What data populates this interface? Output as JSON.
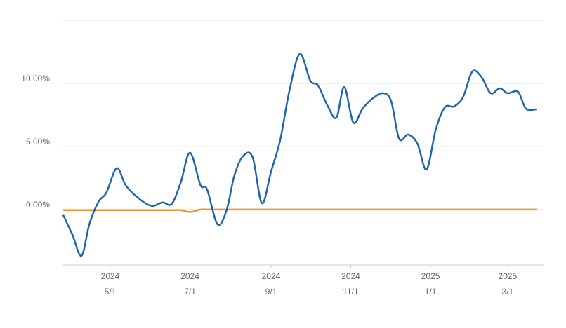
{
  "chart_data": {
    "type": "line",
    "x": [
      "2024-03-26",
      "2024-04-02",
      "2024-04-09",
      "2024-04-15",
      "2024-04-22",
      "2024-04-28",
      "2024-05-06",
      "2024-05-13",
      "2024-05-24",
      "2024-06-02",
      "2024-06-10",
      "2024-06-17",
      "2024-06-24",
      "2024-07-01",
      "2024-07-09",
      "2024-07-14",
      "2024-07-22",
      "2024-07-29",
      "2024-08-04",
      "2024-08-11",
      "2024-08-18",
      "2024-08-25",
      "2024-09-01",
      "2024-09-08",
      "2024-09-15",
      "2024-09-23",
      "2024-10-01",
      "2024-10-07",
      "2024-10-14",
      "2024-10-21",
      "2024-10-27",
      "2024-11-03",
      "2024-11-10",
      "2024-11-18",
      "2024-11-26",
      "2024-12-02",
      "2024-12-08",
      "2024-12-15",
      "2024-12-22",
      "2024-12-29",
      "2025-01-05",
      "2025-01-12",
      "2025-01-19",
      "2025-01-26",
      "2025-02-02",
      "2025-02-09",
      "2025-02-16",
      "2025-02-23",
      "2025-03-01",
      "2025-03-09",
      "2025-03-15",
      "2025-03-23"
    ],
    "series": [
      {
        "color": "#2166ac",
        "values": [
          -0.44,
          -2.0,
          -3.67,
          -1.17,
          0.61,
          1.33,
          3.28,
          1.89,
          0.78,
          0.28,
          0.56,
          0.44,
          2.17,
          4.5,
          1.94,
          1.61,
          -1.17,
          -0.06,
          2.72,
          4.28,
          4.11,
          0.5,
          3.0,
          5.5,
          9.39,
          12.33,
          10.22,
          9.83,
          8.28,
          7.28,
          9.72,
          6.89,
          8.0,
          8.83,
          9.22,
          8.56,
          5.61,
          5.94,
          5.22,
          3.17,
          6.33,
          8.11,
          8.17,
          8.94,
          10.94,
          10.5,
          9.22,
          9.61,
          9.22,
          9.33,
          8.0,
          7.94
        ]
      },
      {
        "color": "#e8962a",
        "values": [
          -0.05,
          -0.05,
          -0.05,
          -0.05,
          -0.05,
          -0.05,
          -0.05,
          -0.05,
          -0.05,
          -0.05,
          -0.05,
          -0.05,
          -0.05,
          -0.2,
          0.0,
          0.0,
          0.0,
          0.0,
          0.0,
          0.0,
          0.0,
          0.0,
          0.0,
          0.0,
          0.0,
          0.0,
          0.0,
          0.0,
          0.0,
          0.0,
          0.0,
          0.0,
          0.0,
          0.0,
          0.0,
          0.0,
          0.0,
          0.0,
          0.0,
          0.0,
          0.0,
          0.0,
          0.0,
          0.0,
          0.0,
          0.0,
          0.0,
          0.0,
          0.0,
          0.0,
          0.0,
          0.0
        ]
      }
    ],
    "xlim": [
      "2024-03-26",
      "2025-03-29"
    ],
    "xticks": [
      {
        "value": "2024-05-01",
        "year": "2024",
        "label": "5/1"
      },
      {
        "value": "2024-07-01",
        "year": "2024",
        "label": "7/1"
      },
      {
        "value": "2024-09-01",
        "year": "2024",
        "label": "9/1"
      },
      {
        "value": "2024-11-01",
        "year": "2024",
        "label": "11/1"
      },
      {
        "value": "2025-01-01",
        "year": "2025",
        "label": "1/1"
      },
      {
        "value": "2025-03-01",
        "year": "2025",
        "label": "3/1"
      }
    ],
    "ylim": [
      -4.4,
      15
    ],
    "yticks": [
      {
        "value": 0,
        "label": "0.00%"
      },
      {
        "value": 5,
        "label": "5.00%"
      },
      {
        "value": 10,
        "label": "10.00%"
      }
    ],
    "grid": true
  }
}
